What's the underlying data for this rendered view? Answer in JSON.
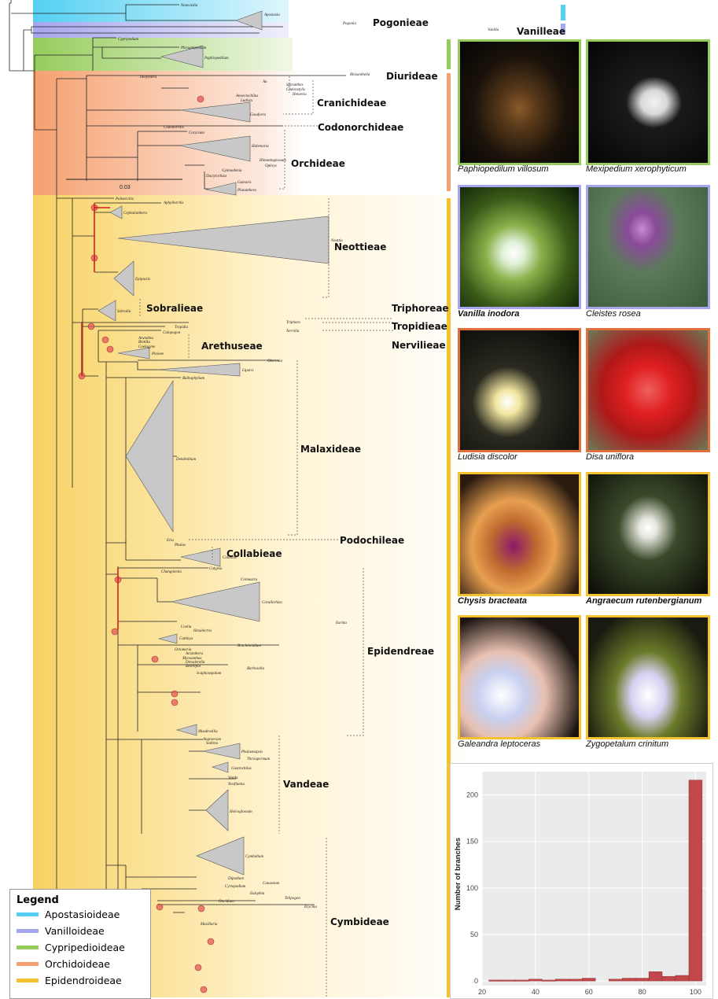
{
  "colors": {
    "apostasioideae": "#54d0f2",
    "vanilloideae": "#a6a6ee",
    "cypripedioideae": "#96cc5c",
    "orchidoideae": "#f5a070",
    "epidendroideae": "#f2c230",
    "support_dot": "#e05a5a",
    "support_branch": "#d42020",
    "triangle": "#c8c8c8",
    "histogram": "#c0474a",
    "histogram_bg": "#ebebeb"
  },
  "tribes": {
    "pogonieae": "Pogonieae",
    "vanilleae": "Vanilleae",
    "diurideae": "Diurideae",
    "cranichideae": "Cranichideae",
    "codonorchideae": "Codonorchideae",
    "orchideae": "Orchideae",
    "neottieae": "Neottieae",
    "sobralieae": "Sobralieae",
    "triphoreae": "Triphoreae",
    "tropidieae": "Tropidieae",
    "nervilieae": "Nervilieae",
    "arethuseae": "Arethuseae",
    "malaxideae": "Malaxideae",
    "podochileae": "Podochileae",
    "collabieae": "Collabieae",
    "epidendreae": "Epidendreae",
    "vandeae": "Vandeae",
    "cymbideae": "Cymbideae"
  },
  "scale_bar": "0.03",
  "taxa": {
    "neuwiedia": "Neuwiedia",
    "apostasia": "Apostasia",
    "pogonia": "Pogonia",
    "vanilla": "Vanilla",
    "cypripedium": "Cypripedium",
    "phragmipedium": "Phragmipedium",
    "paphiopedilum": "Paphiopedilum",
    "thelymitra": "Thelymitra",
    "rhizanthella": "Rhizanthella",
    "aa": "Aa",
    "spiranthes": "Spiranthes",
    "cheirostylis": "Cheirostylis",
    "hetaeria": "Hetaeria",
    "anoectochilus": "Anoectochilus",
    "ludisia": "Ludisia",
    "goodyera": "Goodyera",
    "codonorchis": "Codonorchis",
    "corycium": "Corycium",
    "habenaria": "Habenaria",
    "himantoglossum": "Himantoglossum",
    "ophrys": "Ophrys",
    "gymnadenia": "Gymnadenia",
    "dactylorhiza": "Dactylorhiza",
    "galearis": "Galearis",
    "platanthera": "Platanthera",
    "palmorchis": "Palmorchis",
    "aphyllorchis": "Aphyllorchis",
    "cephalanthera": "Cephalanthera",
    "neottia": "Neottia",
    "epipactis": "Epipactis",
    "sobralia": "Sobralia",
    "triphora": "Triphora",
    "tropidia": "Tropidia",
    "nervilia": "Nervilia",
    "calopogon": "Calopogon",
    "arundina": "Arundina",
    "bletilla": "Bletilla",
    "coelogyne": "Coelogyne",
    "pleione": "Pleione",
    "oberonia": "Oberonia",
    "liparis": "Liparis",
    "bulbophyllum": "Bulbophyllum",
    "dendrobium": "Dendrobium",
    "eria": "Eria",
    "phaius": "Phaius",
    "calanthe": "Calanthe",
    "changnienia": "Changnienia",
    "calypso": "Calypso",
    "cremastra": "Cremastra",
    "corallorhiza": "Corallorhiza",
    "earina": "Earina",
    "coelia": "Coelia",
    "hexalectris": "Hexalectris",
    "cattleya": "Cattleya",
    "brachionidium": "Brachionidium",
    "octomeria": "Octomeria",
    "acianthera": "Acianthera",
    "myoxanthus": "Myoxanthus",
    "dresslerella": "Dresslerella",
    "restrepia": "Restrepia",
    "barbosella": "Barbosella",
    "scaphosepalum": "Scaphosepalum",
    "masdevallia": "Masdevallia",
    "angraecum": "Angraecum",
    "sedirea": "Sedirea",
    "phalaenopsis": "Phalaenopsis",
    "thrixspermum": "Thrixspermum",
    "gastrochilus": "Gastrochilus",
    "vanda": "Vanda",
    "neofinetia": "Neofinetia",
    "holcoglossum": "Holcoglossum",
    "cymbidium": "Cymbidium",
    "dipodium": "Dipodium",
    "catasetum": "Catasetum",
    "cyrtopodium": "Cyrtopodium",
    "eulophia": "Eulophia",
    "telipogon": "Telipogon",
    "oncidium": "Oncidium",
    "erycina": "Erycina",
    "maxillaria": "Maxillaria"
  },
  "captions": {
    "p1": "Paphiopedilum villosum",
    "p2": "Mexipedium xerophyticum",
    "p3": "Vanilla inodora",
    "p4": "Cleistes rosea",
    "p5": "Ludisia discolor",
    "p6": "Disa uniflora",
    "p7": "Chysis bracteata",
    "p8": "Angraecum rutenbergianum",
    "p9": "Galeandra leptoceras",
    "p10": "Zygopetalum crinitum"
  },
  "legend": {
    "title": "Legend",
    "items": [
      "Apostasioideae",
      "Vanilloideae",
      "Cypripedioideae",
      "Orchidoideae",
      "Epidendroideae"
    ]
  },
  "chart_data": {
    "type": "bar",
    "ylabel": "Number of branches",
    "xlabel": "",
    "xlim": [
      20,
      104
    ],
    "ylim": [
      -5,
      225
    ],
    "xticks": [
      20,
      40,
      60,
      80,
      100
    ],
    "yticks": [
      0,
      50,
      100,
      150,
      200
    ],
    "bins": [
      {
        "x": 25,
        "value": 1
      },
      {
        "x": 30,
        "value": 1
      },
      {
        "x": 35,
        "value": 1
      },
      {
        "x": 40,
        "value": 2
      },
      {
        "x": 45,
        "value": 1
      },
      {
        "x": 50,
        "value": 2
      },
      {
        "x": 55,
        "value": 2
      },
      {
        "x": 60,
        "value": 3
      },
      {
        "x": 70,
        "value": 2
      },
      {
        "x": 75,
        "value": 3
      },
      {
        "x": 80,
        "value": 3
      },
      {
        "x": 85,
        "value": 10
      },
      {
        "x": 90,
        "value": 5
      },
      {
        "x": 95,
        "value": 6
      },
      {
        "x": 100,
        "value": 216
      }
    ]
  }
}
